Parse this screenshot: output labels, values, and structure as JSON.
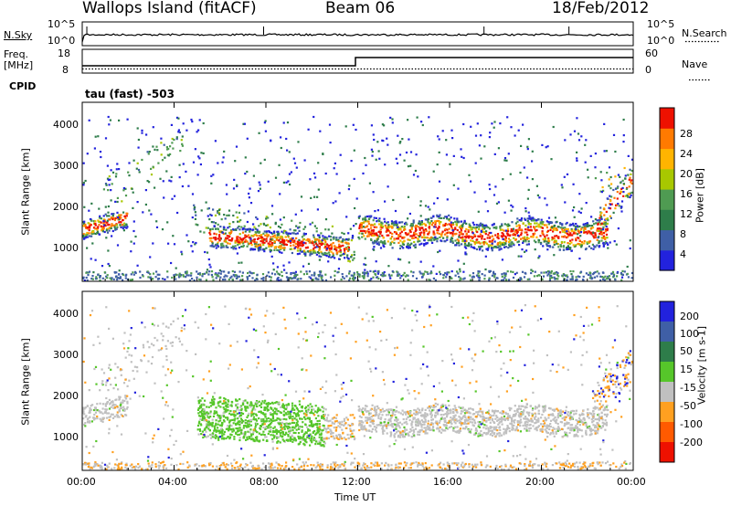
{
  "header": {
    "station": "Wallops Island (fitACF)",
    "beam": "Beam 06",
    "date": "18/Feb/2012"
  },
  "panels": {
    "noise": {
      "left_label": "N.Sky",
      "right_label": "N.Search",
      "left_ticks": [
        "10^5",
        "10^0"
      ],
      "right_ticks": [
        "10^5",
        "10^0"
      ]
    },
    "freq": {
      "left_label_1": "Freq.",
      "left_label_2": "[MHz]",
      "right_label": "Nave",
      "left_ticks": [
        "18",
        "8"
      ],
      "right_ticks": [
        "60",
        "0"
      ]
    },
    "cpid": {
      "label": "CPID",
      "program": "tau (fast) -503"
    }
  },
  "colors": {
    "power": [
      "#2222dd",
      "#3f5fa6",
      "#2e7d4a",
      "#4f9b52",
      "#a8c800",
      "#ffb400",
      "#ff7a00",
      "#ee1100"
    ],
    "velocity": [
      "#2222dd",
      "#3f5fa6",
      "#2e7d4a",
      "#56c62a",
      "#c0c0c0",
      "#ffa020",
      "#ff5a00",
      "#ee1100"
    ]
  },
  "chart_data": [
    {
      "type": "heatmap",
      "name": "power",
      "xlabel": "Time UT",
      "ylabel": "Slant Range [km]",
      "colorbar_label": "Power [dB]",
      "colorbar_ticks": [
        "28",
        "24",
        "20",
        "16",
        "12",
        "8",
        "4"
      ],
      "x_tick_labels": [
        "00:00",
        "04:00",
        "08:00",
        "12:00",
        "16:00",
        "20:00",
        "00:00"
      ],
      "y_ticks": [
        "1000",
        "2000",
        "3000",
        "4000"
      ],
      "xlim": [
        0,
        24
      ],
      "ylim": [
        180,
        4500
      ],
      "features": [
        {
          "hours": [
            0.0,
            1.9
          ],
          "range": [
            1350,
            1800
          ],
          "power": "red"
        },
        {
          "hours": [
            1.0,
            4.3
          ],
          "range": [
            2200,
            3800
          ],
          "power": "blue-green"
        },
        {
          "hours": [
            5.5,
            11.8
          ],
          "range": [
            600,
            1700
          ],
          "power": "red-orange"
        },
        {
          "hours": [
            12.0,
            23.0
          ],
          "range": [
            1050,
            1700
          ],
          "power": "red"
        },
        {
          "hours": [
            22.5,
            24.0
          ],
          "range": [
            2000,
            3000
          ],
          "power": "orange"
        }
      ]
    },
    {
      "type": "heatmap",
      "name": "velocity",
      "xlabel": "Time UT",
      "ylabel": "Slant Range [km]",
      "colorbar_label": "Velocity [m s-1]",
      "colorbar_ticks": [
        "200",
        "100",
        "50",
        "15",
        "-15",
        "-50",
        "-100",
        "-200"
      ],
      "x_tick_labels": [
        "00:00",
        "04:00",
        "08:00",
        "12:00",
        "16:00",
        "20:00",
        "00:00"
      ],
      "y_ticks": [
        "1000",
        "2000",
        "3000",
        "4000"
      ],
      "xlim": [
        0,
        24
      ],
      "ylim": [
        180,
        4500
      ],
      "features": [
        {
          "hours": [
            0.0,
            4.3
          ],
          "range": [
            1300,
            3800
          ],
          "velocity": "grey (-15 to 15)"
        },
        {
          "hours": [
            5.0,
            10.5
          ],
          "range": [
            950,
            2000
          ],
          "velocity": "green (15 to 50)"
        },
        {
          "hours": [
            10.5,
            11.8
          ],
          "range": [
            800,
            1400
          ],
          "velocity": "grey"
        },
        {
          "hours": [
            12.0,
            23.0
          ],
          "range": [
            1050,
            1700
          ],
          "velocity": "grey"
        },
        {
          "hours": [
            22.0,
            24.0
          ],
          "range": [
            1800,
            3000
          ],
          "velocity": "orange / blue"
        }
      ]
    }
  ]
}
